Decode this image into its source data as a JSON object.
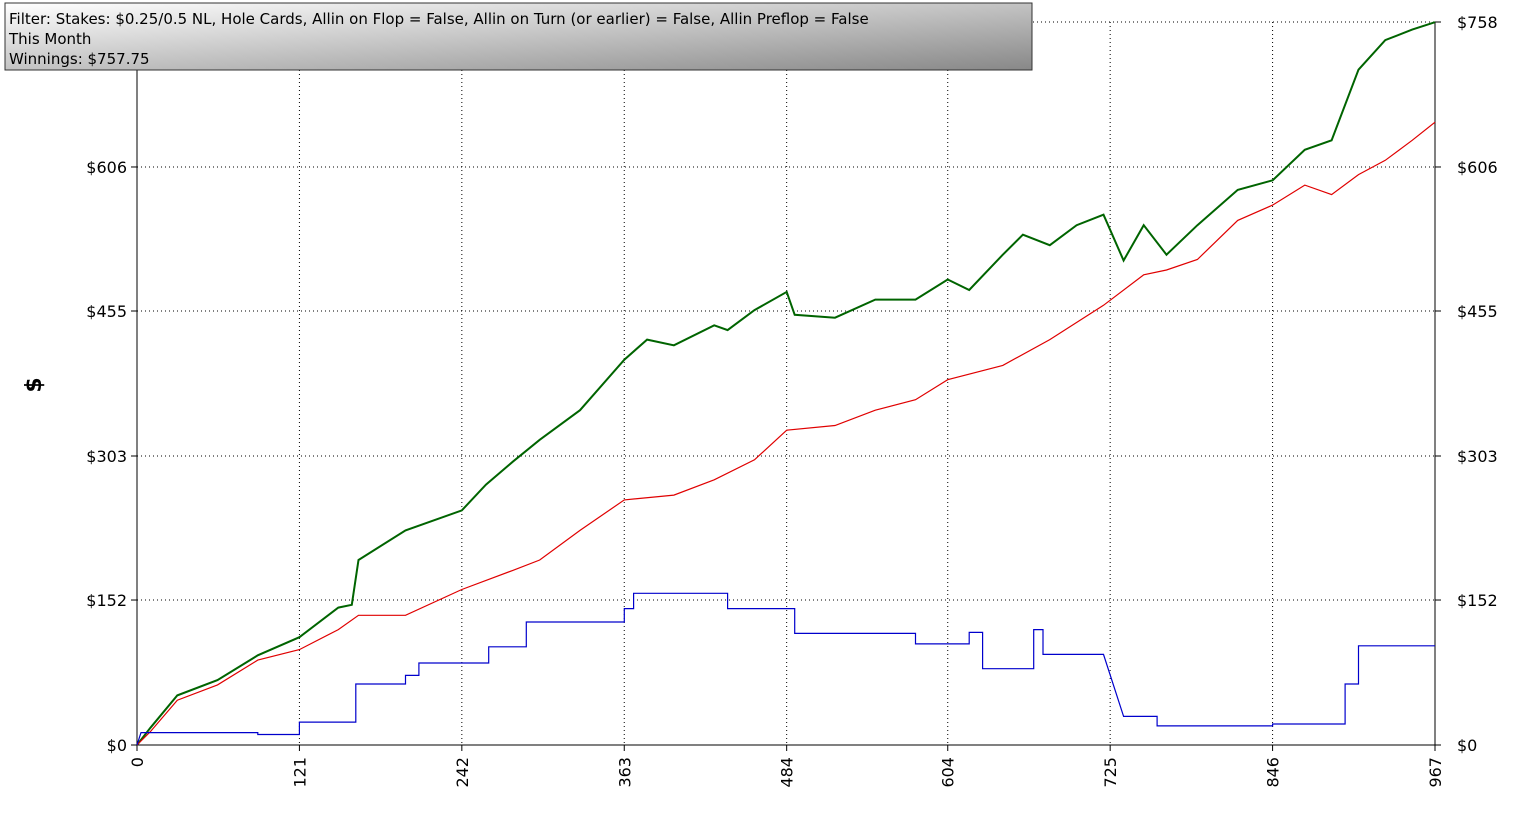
{
  "chart_data": {
    "type": "line",
    "title": "Filter: Stakes: $0.25/0.5 NL, Hole Cards, Allin on Flop = False, Allin on Turn (or earlier) = False, Allin Preflop = False",
    "subtitle": "This Month",
    "annotation": "Winnings: $757.75",
    "y_label": "$",
    "xlim": [
      0,
      967
    ],
    "xticks": [
      0,
      121,
      242,
      363,
      484,
      604,
      725,
      846,
      967
    ],
    "ylim": [
      0,
      758
    ],
    "yticks": [
      {
        "value": 0,
        "label": "$0"
      },
      {
        "value": 152,
        "label": "$152"
      },
      {
        "value": 303,
        "label": "$303"
      },
      {
        "value": 455,
        "label": "$455"
      },
      {
        "value": 606,
        "label": "$606"
      },
      {
        "value": 758,
        "label": "$758"
      }
    ],
    "grid": true,
    "series": [
      {
        "color": "#006400",
        "x": [
          0,
          10,
          30,
          60,
          90,
          121,
          150,
          160,
          165,
          200,
          242,
          260,
          280,
          300,
          330,
          363,
          380,
          400,
          430,
          440,
          460,
          484,
          490,
          520,
          550,
          580,
          604,
          620,
          645,
          660,
          680,
          700,
          720,
          735,
          750,
          767,
          790,
          820,
          846,
          870,
          890,
          910,
          930,
          950,
          967
        ],
        "values": [
          0,
          18,
          52,
          68,
          94,
          113,
          144,
          147,
          194,
          225,
          246,
          273,
          297,
          320,
          351,
          404,
          425,
          419,
          440,
          435,
          456,
          475,
          451,
          448,
          467,
          467,
          488,
          477,
          514,
          535,
          524,
          545,
          556,
          508,
          545,
          514,
          545,
          582,
          592,
          624,
          634,
          708,
          739,
          750,
          757.75
        ]
      },
      {
        "color": "#e00000",
        "x": [
          0,
          10,
          30,
          60,
          90,
          121,
          150,
          165,
          200,
          242,
          280,
          300,
          330,
          363,
          400,
          430,
          460,
          484,
          520,
          550,
          580,
          604,
          645,
          680,
          720,
          750,
          767,
          790,
          820,
          846,
          870,
          890,
          910,
          930,
          950,
          967
        ],
        "values": [
          0,
          14,
          47,
          63,
          89,
          100,
          121,
          136,
          136,
          163,
          183,
          194,
          225,
          257,
          262,
          278,
          299,
          330,
          335,
          351,
          362,
          383,
          398,
          425,
          461,
          493,
          498,
          509,
          550,
          566,
          587,
          577,
          598,
          613,
          634,
          653
        ]
      },
      {
        "color": "#0000cc",
        "x": [
          0,
          3,
          90,
          90,
          121,
          121,
          163,
          163,
          200,
          200,
          210,
          210,
          262,
          262,
          290,
          290,
          363,
          363,
          370,
          370,
          440,
          440,
          490,
          490,
          580,
          580,
          620,
          620,
          630,
          630,
          668,
          668,
          675,
          675,
          720,
          735,
          760,
          760,
          846,
          846,
          900,
          900,
          910,
          910,
          967
        ],
        "values": [
          0,
          13,
          13,
          11,
          11,
          24,
          24,
          64,
          64,
          73,
          73,
          86,
          86,
          103,
          103,
          129,
          129,
          143,
          143,
          159,
          159,
          143,
          143,
          117,
          117,
          106,
          106,
          118,
          118,
          80,
          80,
          121,
          121,
          95,
          95,
          30,
          30,
          20,
          20,
          22,
          22,
          64,
          64,
          104,
          104
        ]
      }
    ]
  }
}
